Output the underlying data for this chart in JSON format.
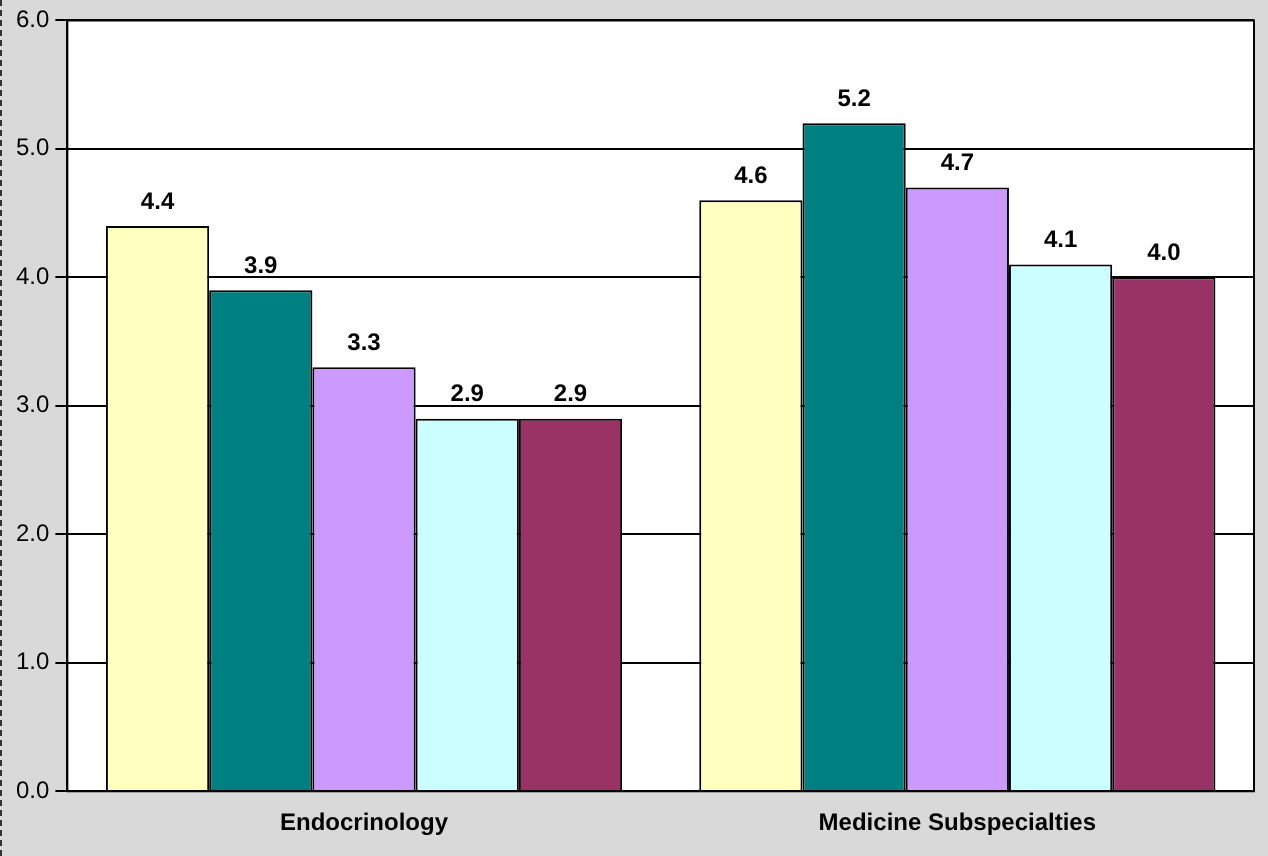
{
  "chart_data": {
    "type": "bar",
    "categories": [
      "Endocrinology",
      "Medicine Subspecialties"
    ],
    "series": [
      {
        "color": "#ffffc0",
        "values": [
          4.4,
          4.6
        ],
        "value_labels": [
          "4.4",
          "4.6"
        ]
      },
      {
        "color": "#008080",
        "values": [
          3.9,
          5.2
        ],
        "value_labels": [
          "3.9",
          "5.2"
        ]
      },
      {
        "color": "#cc99ff",
        "values": [
          3.3,
          4.7
        ],
        "value_labels": [
          "3.3",
          "4.7"
        ]
      },
      {
        "color": "#ccffff",
        "values": [
          2.9,
          4.1
        ],
        "value_labels": [
          "2.9",
          "4.1"
        ]
      },
      {
        "color": "#993366",
        "values": [
          2.9,
          4.0
        ],
        "value_labels": [
          "2.9",
          "4.0"
        ]
      }
    ],
    "ylim": [
      0,
      6
    ],
    "yticks": [
      {
        "value": 0,
        "label": "0.0"
      },
      {
        "value": 1,
        "label": "1.0"
      },
      {
        "value": 2,
        "label": "2.0"
      },
      {
        "value": 3,
        "label": "3.0"
      },
      {
        "value": 4,
        "label": "4.0"
      },
      {
        "value": 5,
        "label": "5.0"
      },
      {
        "value": 6,
        "label": "6.0"
      }
    ],
    "grid": "y",
    "legend": false
  }
}
